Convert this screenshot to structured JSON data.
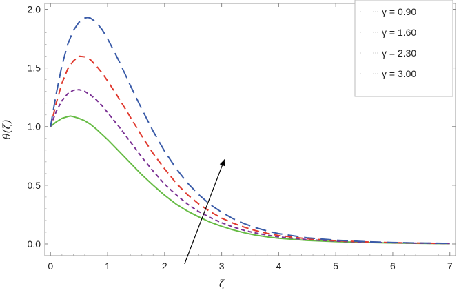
{
  "chart_data": {
    "type": "line",
    "xlabel": "ζ",
    "ylabel": "θ(ζ)",
    "xlim": [
      -0.1,
      7.1
    ],
    "ylim": [
      -0.1,
      2.05
    ],
    "x_ticks": [
      "0",
      "1",
      "2",
      "3",
      "4",
      "5",
      "6",
      "7"
    ],
    "y_ticks": [
      "0.0",
      "0.5",
      "1.0",
      "1.5",
      "2.0"
    ],
    "legend_position": "top-right",
    "annotation": "arrow indicating increase of γ",
    "arrow": {
      "from": [
        2.35,
        -0.17
      ],
      "to": [
        3.05,
        0.72
      ]
    },
    "series": [
      {
        "name": "γ = 0.90",
        "color": "#66bb44",
        "dash": "solid",
        "x": [
          0,
          0.1,
          0.2,
          0.3,
          0.35,
          0.4,
          0.5,
          0.6,
          0.7,
          0.8,
          0.9,
          1.0,
          1.2,
          1.4,
          1.6,
          1.8,
          2.0,
          2.2,
          2.4,
          2.6,
          2.8,
          3.0,
          3.2,
          3.4,
          3.6,
          3.8,
          4.0,
          4.5,
          5.0,
          5.5,
          6.0,
          6.5,
          7.0
        ],
        "values": [
          1.0,
          1.04,
          1.07,
          1.085,
          1.09,
          1.085,
          1.07,
          1.05,
          1.02,
          0.98,
          0.935,
          0.89,
          0.79,
          0.69,
          0.59,
          0.5,
          0.415,
          0.34,
          0.28,
          0.23,
          0.185,
          0.15,
          0.12,
          0.095,
          0.075,
          0.06,
          0.048,
          0.03,
          0.02,
          0.013,
          0.008,
          0.005,
          0.003
        ]
      },
      {
        "name": "γ = 1.60",
        "color": "#7b3294",
        "dash": "short",
        "x": [
          0,
          0.1,
          0.2,
          0.3,
          0.4,
          0.5,
          0.6,
          0.7,
          0.8,
          0.9,
          1.0,
          1.2,
          1.4,
          1.6,
          1.8,
          2.0,
          2.2,
          2.4,
          2.6,
          2.8,
          3.0,
          3.2,
          3.4,
          3.6,
          3.8,
          4.0,
          4.5,
          5.0,
          5.5,
          6.0,
          6.5,
          7.0
        ],
        "values": [
          1.0,
          1.13,
          1.22,
          1.28,
          1.31,
          1.315,
          1.3,
          1.27,
          1.23,
          1.18,
          1.12,
          1.0,
          0.87,
          0.74,
          0.62,
          0.51,
          0.42,
          0.34,
          0.275,
          0.225,
          0.18,
          0.145,
          0.115,
          0.093,
          0.075,
          0.06,
          0.037,
          0.024,
          0.015,
          0.01,
          0.006,
          0.004
        ]
      },
      {
        "name": "γ = 2.30",
        "color": "#e03a2f",
        "dash": "medium",
        "x": [
          0,
          0.1,
          0.2,
          0.3,
          0.4,
          0.5,
          0.6,
          0.7,
          0.8,
          0.9,
          1.0,
          1.2,
          1.4,
          1.6,
          1.8,
          2.0,
          2.2,
          2.4,
          2.6,
          2.8,
          3.0,
          3.2,
          3.4,
          3.6,
          3.8,
          4.0,
          4.5,
          5.0,
          5.5,
          6.0,
          6.5,
          7.0
        ],
        "values": [
          1.0,
          1.2,
          1.37,
          1.49,
          1.56,
          1.6,
          1.595,
          1.57,
          1.52,
          1.46,
          1.39,
          1.24,
          1.08,
          0.92,
          0.77,
          0.64,
          0.52,
          0.42,
          0.34,
          0.275,
          0.22,
          0.177,
          0.142,
          0.113,
          0.09,
          0.072,
          0.044,
          0.028,
          0.018,
          0.011,
          0.007,
          0.005
        ]
      },
      {
        "name": "γ = 3.00",
        "color": "#3a5ba8",
        "dash": "long",
        "x": [
          0,
          0.1,
          0.2,
          0.3,
          0.4,
          0.5,
          0.6,
          0.65,
          0.7,
          0.8,
          0.9,
          1.0,
          1.2,
          1.4,
          1.6,
          1.8,
          2.0,
          2.2,
          2.4,
          2.6,
          2.8,
          3.0,
          3.2,
          3.4,
          3.6,
          3.8,
          4.0,
          4.5,
          5.0,
          5.5,
          6.0,
          6.5,
          7.0
        ],
        "values": [
          1.0,
          1.28,
          1.52,
          1.7,
          1.82,
          1.89,
          1.925,
          1.93,
          1.925,
          1.89,
          1.83,
          1.75,
          1.56,
          1.35,
          1.15,
          0.96,
          0.79,
          0.645,
          0.52,
          0.42,
          0.335,
          0.27,
          0.215,
          0.172,
          0.138,
          0.11,
          0.088,
          0.052,
          0.032,
          0.02,
          0.012,
          0.008,
          0.005
        ]
      }
    ]
  }
}
